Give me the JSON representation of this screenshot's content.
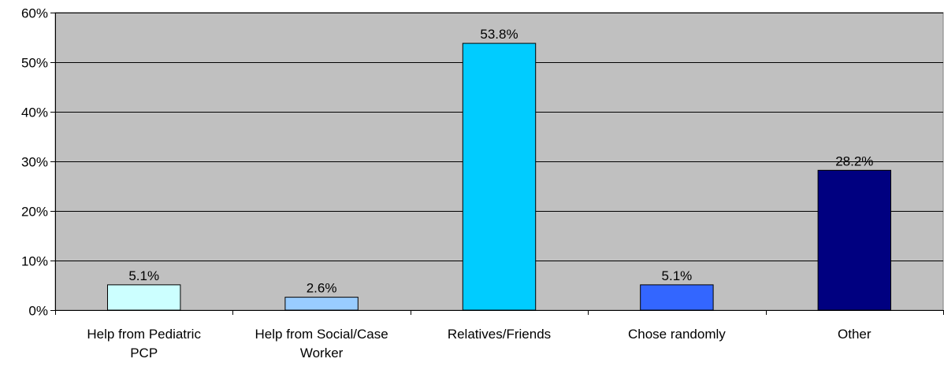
{
  "chart_data": {
    "type": "bar",
    "title": "",
    "xlabel": "",
    "ylabel": "",
    "categories": [
      [
        "Help from Pediatric",
        "PCP"
      ],
      [
        "Help from Social/Case",
        "Worker"
      ],
      [
        "Relatives/Friends"
      ],
      [
        "Chose randomly"
      ],
      [
        "Other"
      ]
    ],
    "values": [
      5.1,
      2.6,
      53.8,
      5.1,
      28.2
    ],
    "data_labels": [
      "5.1%",
      "2.6%",
      "53.8%",
      "5.1%",
      "28.2%"
    ],
    "bar_colors": [
      "#ccffff",
      "#99ccff",
      "#00ccff",
      "#3366ff",
      "#000080"
    ],
    "ylim": [
      0,
      60
    ],
    "y_ticks": [
      0,
      10,
      20,
      30,
      40,
      50,
      60
    ],
    "y_tick_labels": [
      "0%",
      "10%",
      "20%",
      "30%",
      "40%",
      "50%",
      "60%"
    ],
    "grid": true,
    "legend": "none",
    "plot_background": "#c0c0c0"
  }
}
